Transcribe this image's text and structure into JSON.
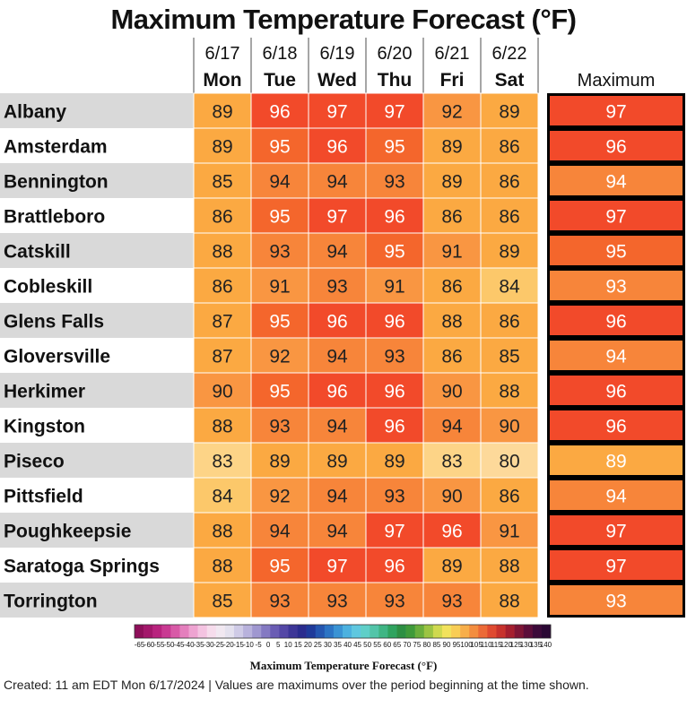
{
  "title": "Maximum Temperature Forecast (°F)",
  "footer": "Created: 11 am EDT Mon 6/17/2024  |  Values are maximums over the period beginning at the time shown.",
  "chart_data": {
    "type": "table",
    "title": "Maximum Temperature Forecast (°F)",
    "columns": [
      {
        "date": "6/17",
        "day": "Mon"
      },
      {
        "date": "6/18",
        "day": "Tue"
      },
      {
        "date": "6/19",
        "day": "Wed"
      },
      {
        "date": "6/20",
        "day": "Thu"
      },
      {
        "date": "6/21",
        "day": "Fri"
      },
      {
        "date": "6/22",
        "day": "Sat"
      }
    ],
    "max_header": "Maximum",
    "rows": [
      {
        "city": "Albany",
        "values": [
          89,
          96,
          97,
          97,
          92,
          89
        ],
        "max": 97
      },
      {
        "city": "Amsterdam",
        "values": [
          89,
          95,
          96,
          95,
          89,
          86
        ],
        "max": 96
      },
      {
        "city": "Bennington",
        "values": [
          85,
          94,
          94,
          93,
          89,
          86
        ],
        "max": 94
      },
      {
        "city": "Brattleboro",
        "values": [
          86,
          95,
          97,
          96,
          86,
          86
        ],
        "max": 97
      },
      {
        "city": "Catskill",
        "values": [
          88,
          93,
          94,
          95,
          91,
          89
        ],
        "max": 95
      },
      {
        "city": "Cobleskill",
        "values": [
          86,
          91,
          93,
          91,
          86,
          84
        ],
        "max": 93
      },
      {
        "city": "Glens Falls",
        "values": [
          87,
          95,
          96,
          96,
          88,
          86
        ],
        "max": 96
      },
      {
        "city": "Gloversville",
        "values": [
          87,
          92,
          94,
          93,
          86,
          85
        ],
        "max": 94
      },
      {
        "city": "Herkimer",
        "values": [
          90,
          95,
          96,
          96,
          90,
          88
        ],
        "max": 96
      },
      {
        "city": "Kingston",
        "values": [
          88,
          93,
          94,
          96,
          94,
          90
        ],
        "max": 96
      },
      {
        "city": "Piseco",
        "values": [
          83,
          89,
          89,
          89,
          83,
          80
        ],
        "max": 89
      },
      {
        "city": "Pittsfield",
        "values": [
          84,
          92,
          94,
          93,
          90,
          86
        ],
        "max": 94
      },
      {
        "city": "Poughkeepsie",
        "values": [
          88,
          94,
          94,
          97,
          96,
          91
        ],
        "max": 97
      },
      {
        "city": "Saratoga Springs",
        "values": [
          88,
          95,
          97,
          96,
          89,
          88
        ],
        "max": 97
      },
      {
        "city": "Torrington",
        "values": [
          85,
          93,
          93,
          93,
          93,
          88
        ],
        "max": 93
      }
    ],
    "color_scale": {
      "title": "Maximum Temperature Forecast (°F)",
      "tick_labels": [
        "-65",
        "-60",
        "-55",
        "-50",
        "-45",
        "-40",
        "-35",
        "-30",
        "-25",
        "-20",
        "-15",
        "-10",
        "-5",
        "0",
        "5",
        "10",
        "15",
        "20",
        "25",
        "30",
        "35",
        "40",
        "45",
        "50",
        "55",
        "60",
        "65",
        "70",
        "75",
        "80",
        "85",
        "90",
        "95",
        "100",
        "105",
        "110",
        "115",
        "120",
        "125",
        "130",
        "135",
        "140"
      ],
      "swatches": [
        "#8e0f5a",
        "#a3176b",
        "#b8237e",
        "#c93a92",
        "#d85aa7",
        "#e47fbd",
        "#eea3d1",
        "#f4c3e1",
        "#f6dcec",
        "#f1e8f1",
        "#e4e1ee",
        "#cfcbe6",
        "#b8b2dc",
        "#9f97d0",
        "#8479c2",
        "#6a5cb4",
        "#5447a6",
        "#3d3697",
        "#2a2c8e",
        "#1f3a9a",
        "#2456b0",
        "#2c74c4",
        "#3a93d4",
        "#4cb1df",
        "#5fc7df",
        "#5fcfc8",
        "#52c4a8",
        "#3fb584",
        "#2fa35f",
        "#2d8f43",
        "#3f9a3a",
        "#6aae3c",
        "#9cc443",
        "#cfd94f",
        "#f2e25c",
        "#f8cd55",
        "#f7ae4a",
        "#f38d3f",
        "#ec6a37",
        "#df4a30",
        "#c7322c",
        "#a51f2e",
        "#7e1535",
        "#5b0d3a",
        "#3c0a3a",
        "#2a0834"
      ]
    }
  }
}
